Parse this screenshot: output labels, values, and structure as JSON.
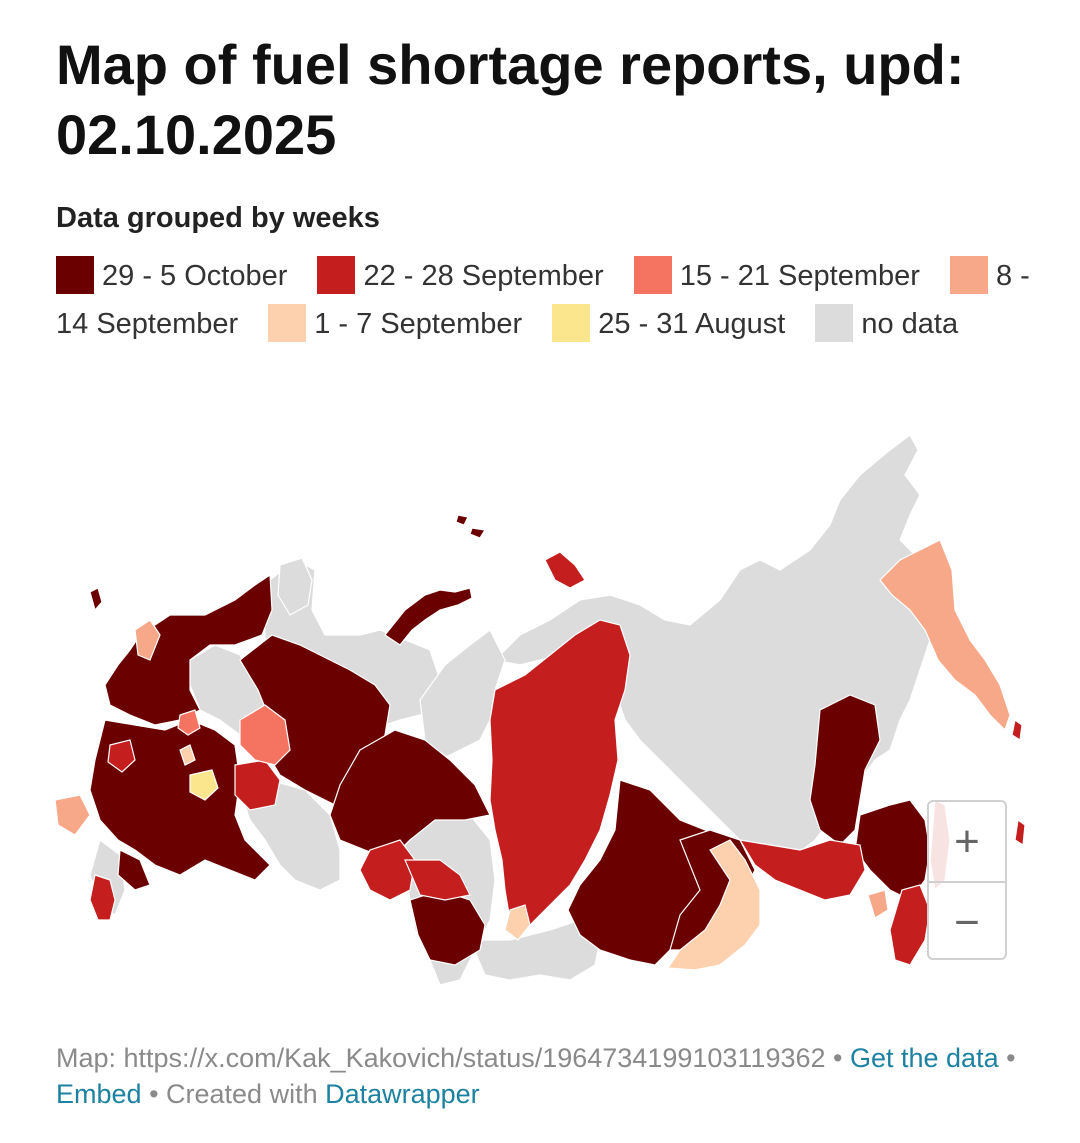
{
  "title": "Map of fuel shortage reports, upd: 02.10.2025",
  "subtitle": "Data grouped by weeks",
  "legend": [
    {
      "label": "29 - 5 October",
      "color": "#6b0000"
    },
    {
      "label": "22 - 28 September",
      "color": "#c41e1e"
    },
    {
      "label": "15 - 21 September",
      "color": "#f47361"
    },
    {
      "label": "8 - 14 September",
      "color": "#f6a889"
    },
    {
      "label": "1 - 7 September",
      "color": "#fdd0ae"
    },
    {
      "label": "25 - 31 August",
      "color": "#fbe58d"
    },
    {
      "label": "no data",
      "color": "#dcdcdc"
    }
  ],
  "zoom": {
    "in_label": "+",
    "out_label": "−"
  },
  "footer": {
    "source": "Map: https://x.com/Kak_Kakovich/status/1964734199103119362",
    "sep1": " • ",
    "get_data": "Get the data",
    "sep2": " • ",
    "embed": "Embed",
    "sep3": " • Created with ",
    "datawrapper": "Datawrapper"
  }
}
